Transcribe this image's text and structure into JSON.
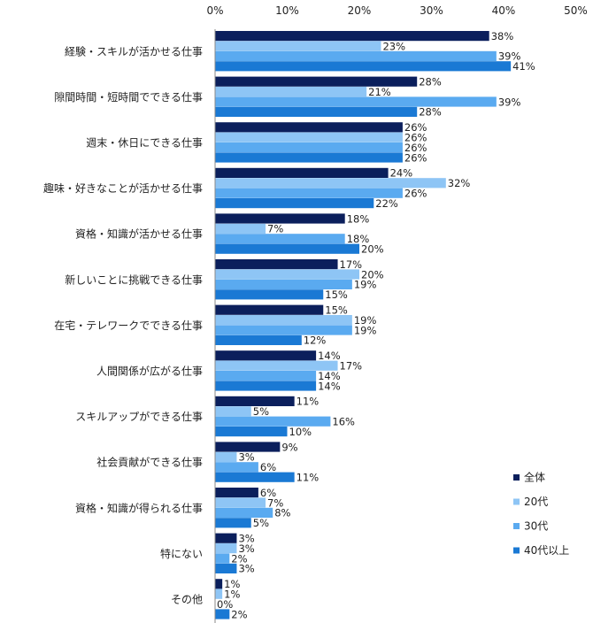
{
  "chart_data": {
    "type": "bar",
    "orientation": "horizontal",
    "unit_suffix": "%",
    "xlim": [
      0,
      50
    ],
    "x_ticks": [
      "0%",
      "10%",
      "20%",
      "30%",
      "40%",
      "50%"
    ],
    "categories": [
      "経験・スキルが活かせる仕事",
      "隙間時間・短時間でできる仕事",
      "週末・休日にできる仕事",
      "趣味・好きなことが活かせる仕事",
      "資格・知識が活かせる仕事",
      "新しいことに挑戦できる仕事",
      "在宅・テレワークでできる仕事",
      "人間関係が広がる仕事",
      "スキルアップができる仕事",
      "社会貢献ができる仕事",
      "資格・知識が得られる仕事",
      "特にない",
      "その他"
    ],
    "series": [
      {
        "name": "全体",
        "color": "#0b1f5c",
        "values": [
          38,
          28,
          26,
          24,
          18,
          17,
          15,
          14,
          11,
          9,
          6,
          3,
          1
        ]
      },
      {
        "name": "20代",
        "color": "#8ec5f5",
        "values": [
          23,
          21,
          26,
          32,
          7,
          20,
          19,
          17,
          5,
          3,
          7,
          3,
          1
        ]
      },
      {
        "name": "30代",
        "color": "#5aaaf0",
        "values": [
          39,
          39,
          26,
          26,
          18,
          19,
          19,
          14,
          16,
          6,
          8,
          2,
          0
        ]
      },
      {
        "name": "40代以上",
        "color": "#1a79d4",
        "values": [
          41,
          28,
          26,
          22,
          20,
          15,
          12,
          14,
          10,
          11,
          5,
          3,
          2
        ]
      }
    ],
    "legend_position": "bottom-right",
    "grid": false
  }
}
